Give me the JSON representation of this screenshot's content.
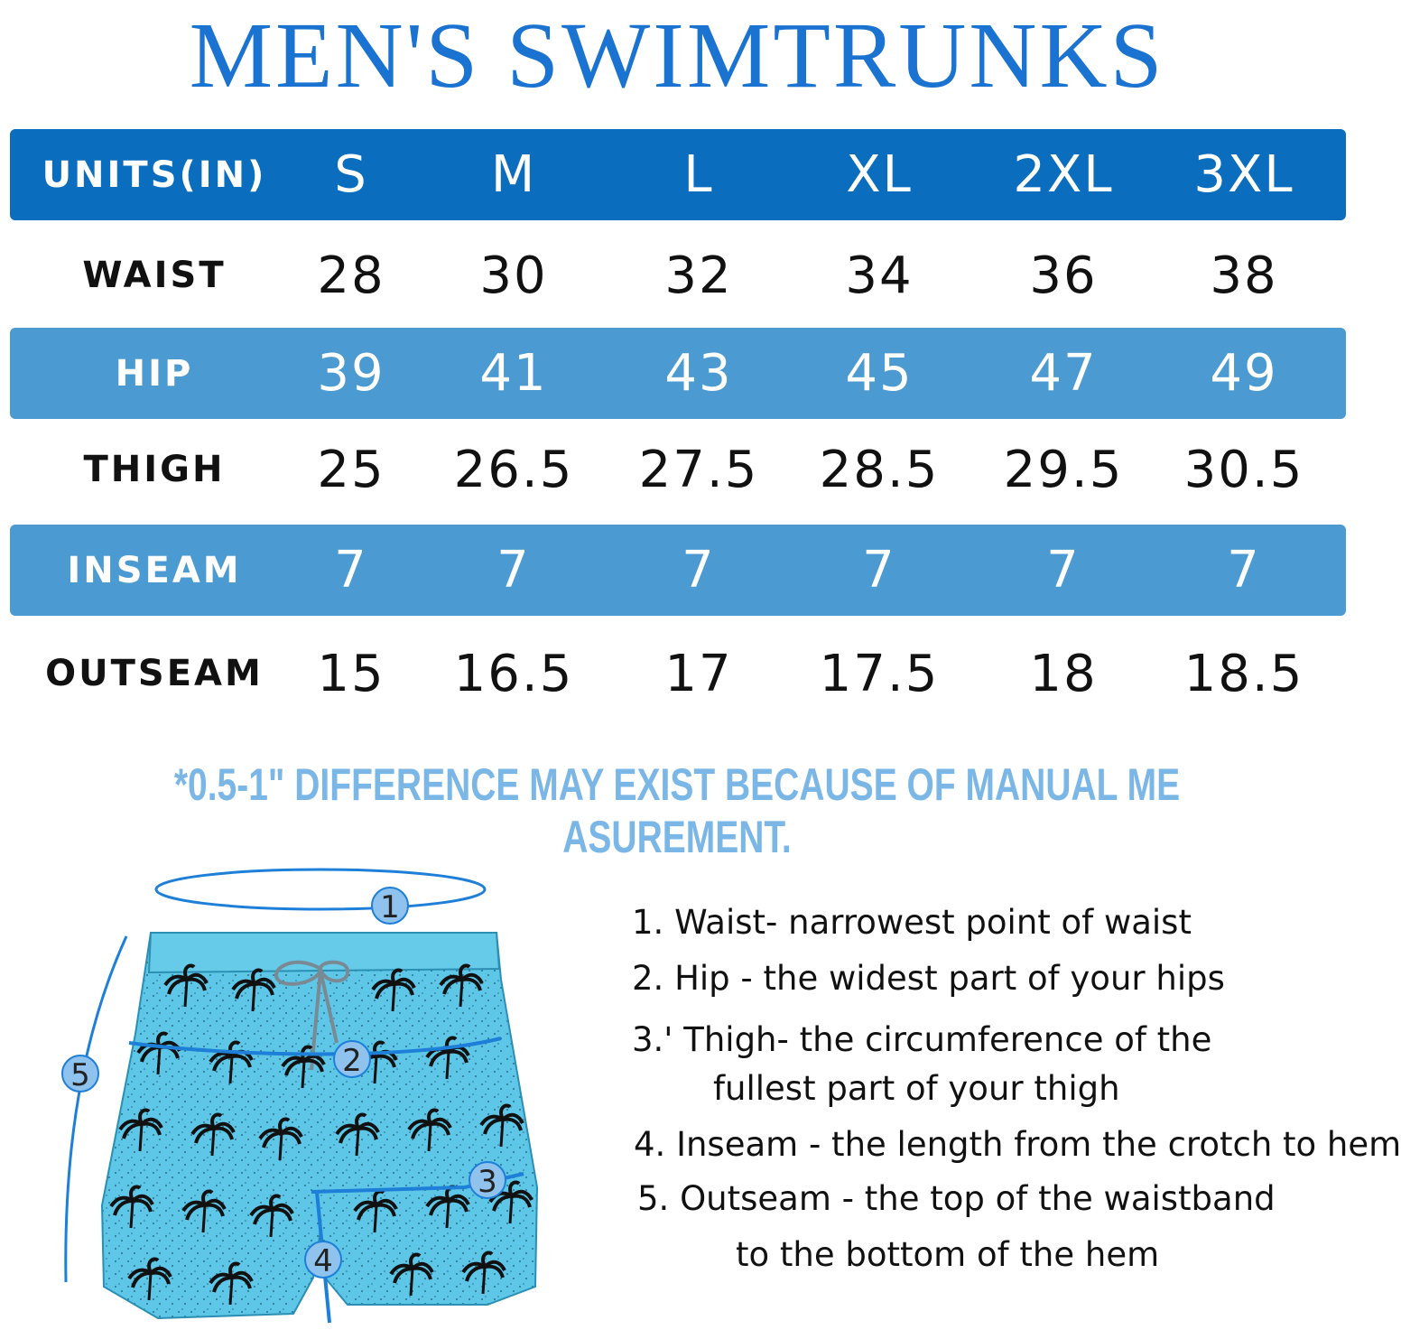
{
  "title": "MEN'S SWIMTRUNKS",
  "table": {
    "header": {
      "label": "UNITS(IN)",
      "sizes": [
        "S",
        "M",
        "L",
        "XL",
        "2XL",
        "3XL"
      ]
    },
    "rows": [
      {
        "label": "WAIST",
        "values": [
          "28",
          "30",
          "32",
          "34",
          "36",
          "38"
        ]
      },
      {
        "label": "HIP",
        "values": [
          "39",
          "41",
          "43",
          "45",
          "47",
          "49"
        ]
      },
      {
        "label": "THIGH",
        "values": [
          "25",
          "26.5",
          "27.5",
          "28.5",
          "29.5",
          "30.5"
        ]
      },
      {
        "label": "INSEAM",
        "values": [
          "7",
          "7",
          "7",
          "7",
          "7",
          "7"
        ]
      },
      {
        "label": "OUTSEAM",
        "values": [
          "15",
          "16.5",
          "17",
          "17.5",
          "18",
          "18.5"
        ]
      }
    ]
  },
  "note": "*0.5-1\" DIFFERENCE MAY EXIST BECAUSE OF MANUAL ME ASUREMENT.",
  "markers": [
    "1",
    "2",
    "3",
    "4",
    "5"
  ],
  "legend": {
    "l1": "1. Waist- narrowest point of waist",
    "l2": "2. Hip - the widest part of your hips",
    "l3a": "3.' Thigh- the circumference of the",
    "l3b": "fullest part of your thigh",
    "l4": "4. Inseam - the length from the crotch to hem",
    "l5a": "5. Outseam - the top of the waistband",
    "l5b": "to the bottom of the hem"
  },
  "colors": {
    "title": "#1a73d1",
    "header_band": "#0b6dbd",
    "light_band": "#4b9ad1",
    "note": "#7bb7e6",
    "shorts": "#5ec6e6",
    "measure_line": "#1e7fd8",
    "marker_fill": "#8fc3ee"
  }
}
